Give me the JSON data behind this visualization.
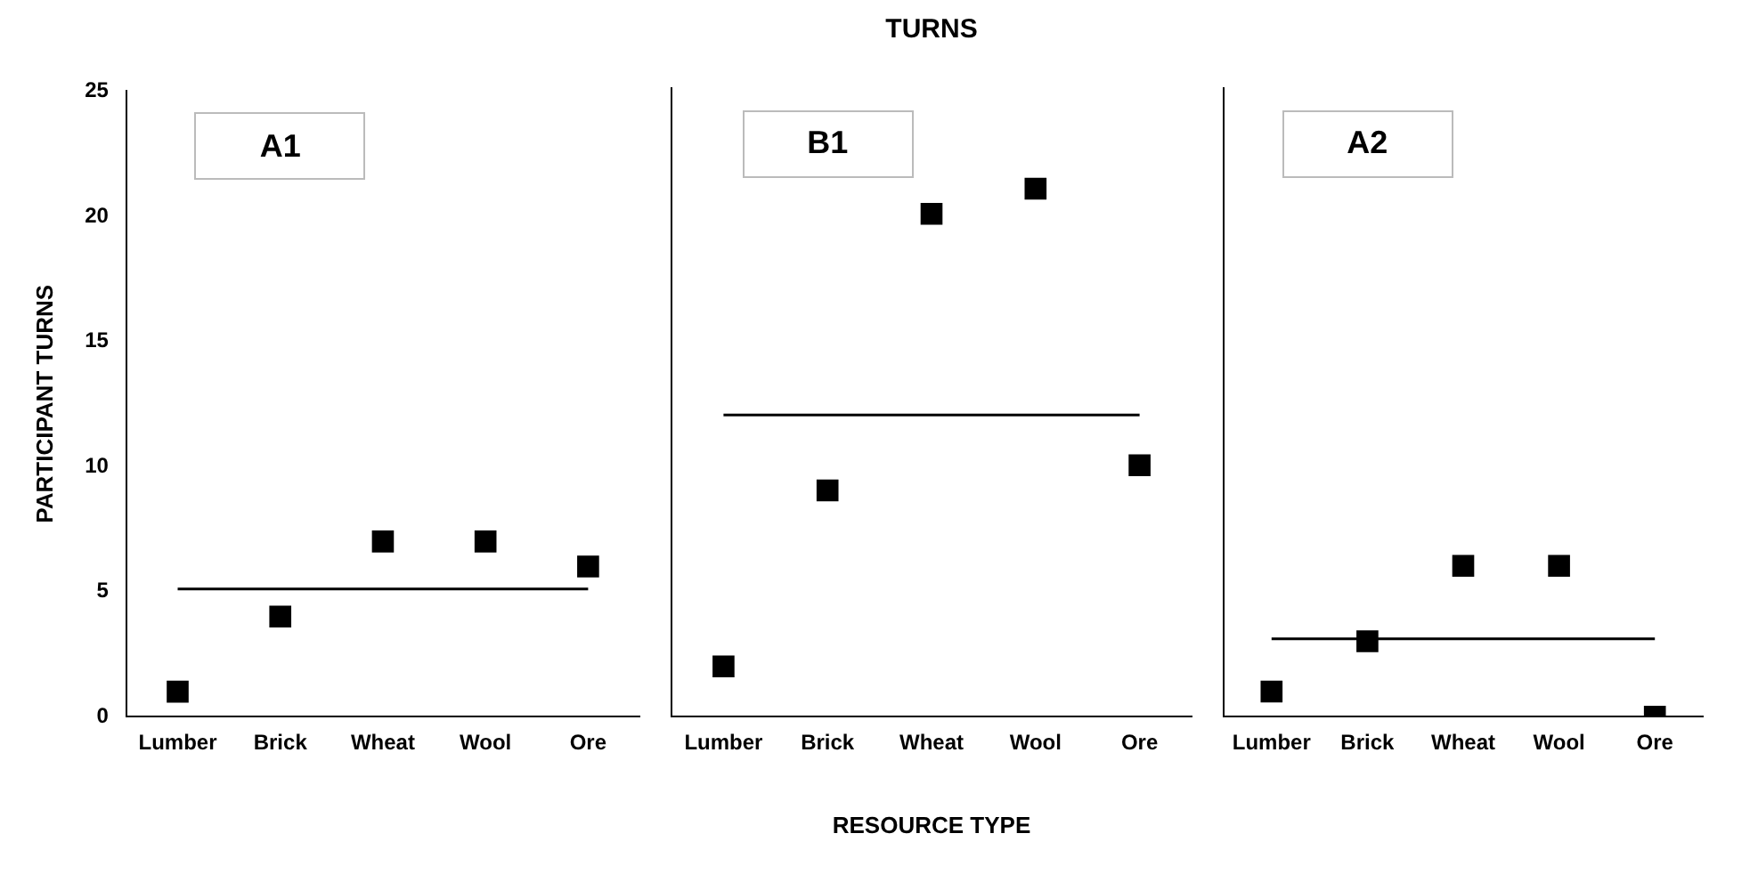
{
  "chart_data": [
    {
      "type": "scatter",
      "ylabel": "PARTICIPANT TURNS",
      "categories": [
        "Lumber",
        "Brick",
        "Wheat",
        "Wool",
        "Ore"
      ],
      "series": [
        {
          "type": "scatter",
          "color": "#000000",
          "marker": "square",
          "values": [
            1,
            4,
            7,
            7,
            6
          ]
        },
        {
          "type": "line",
          "color": "#000000",
          "marker": "none",
          "values": [
            5.1,
            5.1,
            5.1,
            5.1,
            5.1
          ]
        }
      ],
      "annotations": [
        "A1"
      ],
      "ylim": [
        0,
        25
      ],
      "yticks": [
        0,
        5,
        10,
        15,
        20,
        25
      ],
      "legend": false
    },
    {
      "type": "scatter",
      "title": "TURNS",
      "xlabel": "RESOURCE TYPE",
      "categories": [
        "Lumber",
        "Brick",
        "Wheat",
        "Wool",
        "Ore"
      ],
      "series": [
        {
          "type": "scatter",
          "color": "#000000",
          "marker": "square",
          "values": [
            2,
            9,
            20,
            21,
            10
          ]
        },
        {
          "type": "line",
          "color": "#000000",
          "marker": "none",
          "values": [
            12,
            12,
            12,
            12,
            12
          ]
        }
      ],
      "annotations": [
        "B1"
      ],
      "ylim": [
        0,
        25
      ],
      "yticks": [
        0,
        5,
        10,
        15,
        20,
        25
      ],
      "tick_labels": "x",
      "legend": false
    },
    {
      "type": "scatter",
      "categories": [
        "Lumber",
        "Brick",
        "Wheat",
        "Wool",
        "Ore"
      ],
      "series": [
        {
          "type": "scatter",
          "color": "#000000",
          "marker": "square",
          "values": [
            1,
            3,
            6,
            6,
            0
          ]
        },
        {
          "type": "line",
          "color": "#000000",
          "marker": "none",
          "values": [
            3.1,
            3.1,
            3.1,
            3.1,
            3.1
          ]
        }
      ],
      "annotations": [
        "A2"
      ],
      "ylim": [
        0,
        25
      ],
      "yticks": [
        0,
        5,
        10,
        15,
        20,
        25
      ],
      "tick_labels": "x",
      "legend": false
    }
  ]
}
